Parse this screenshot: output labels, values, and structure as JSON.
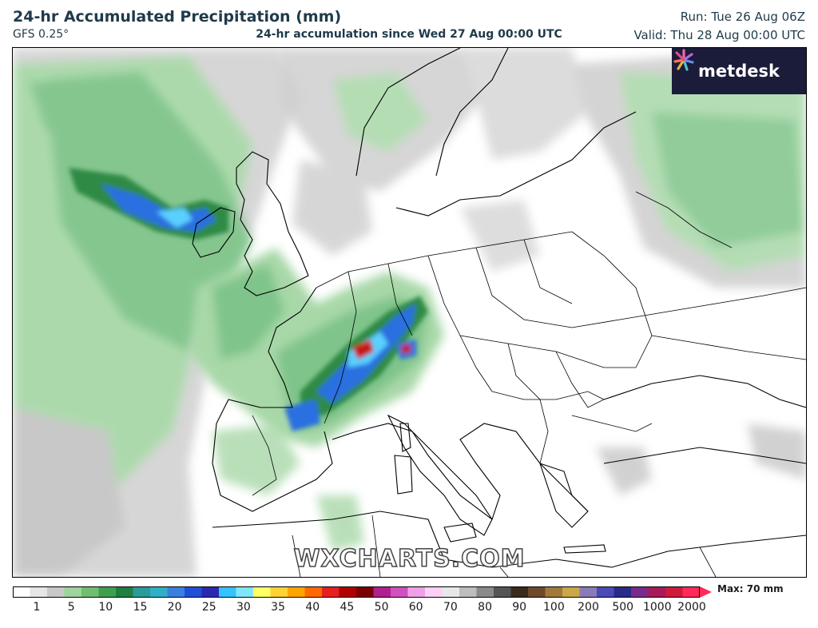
{
  "header": {
    "title": "24-hr Accumulated Precipitation (mm)",
    "model": "GFS 0.25°",
    "subtitle": "24-hr accumulation since Wed 27 Aug 00:00 UTC",
    "run": "Run: Tue 26 Aug 06Z",
    "valid": "Valid: Thu 28 Aug 00:00 UTC"
  },
  "logo": {
    "text": "metdesk",
    "icon": "metdesk-star-icon"
  },
  "watermark": "WXCHARTS.COM",
  "colorbar": {
    "max_label": "Max: 70 mm",
    "tick_labels": [
      "1",
      "5",
      "10",
      "15",
      "20",
      "25",
      "30",
      "35",
      "40",
      "45",
      "50",
      "60",
      "70",
      "80",
      "90",
      "100",
      "200",
      "500",
      "1000",
      "2000"
    ],
    "colors": [
      "#ffffff",
      "#e6e6e6",
      "#c8c8c8",
      "#9cd49c",
      "#6fbf6f",
      "#3f9f4f",
      "#1f7f3f",
      "#2a9a9a",
      "#2fb0c8",
      "#3a7fe0",
      "#1f4fd8",
      "#2a2ab0",
      "#33c3ff",
      "#7fe6ff",
      "#ffff66",
      "#ffd233",
      "#ffa500",
      "#ff6a00",
      "#e62020",
      "#b00000",
      "#7a0000",
      "#b0208f",
      "#d050c0",
      "#f0a0e8",
      "#ffd0f5",
      "#e8e8e8",
      "#bdbdbd",
      "#8a8a8a",
      "#555555",
      "#3a2a1a",
      "#6e4a2a",
      "#a07a3a",
      "#caa848",
      "#8a7ab8",
      "#4a4ab8",
      "#2a2a8a",
      "#7a2a8a",
      "#a81a5a",
      "#d01a3a",
      "#ff2a5a"
    ]
  },
  "map": {
    "features": [
      "precipitation-field",
      "coastlines",
      "country-borders"
    ],
    "colors": {
      "light_gray": "#d0d0d0",
      "light_green": "#a8d8a8",
      "green": "#5fb56f",
      "dark_green": "#2e8a45",
      "blue": "#2b6fe0",
      "light_blue": "#5ad0ff",
      "red": "#c81818"
    }
  }
}
